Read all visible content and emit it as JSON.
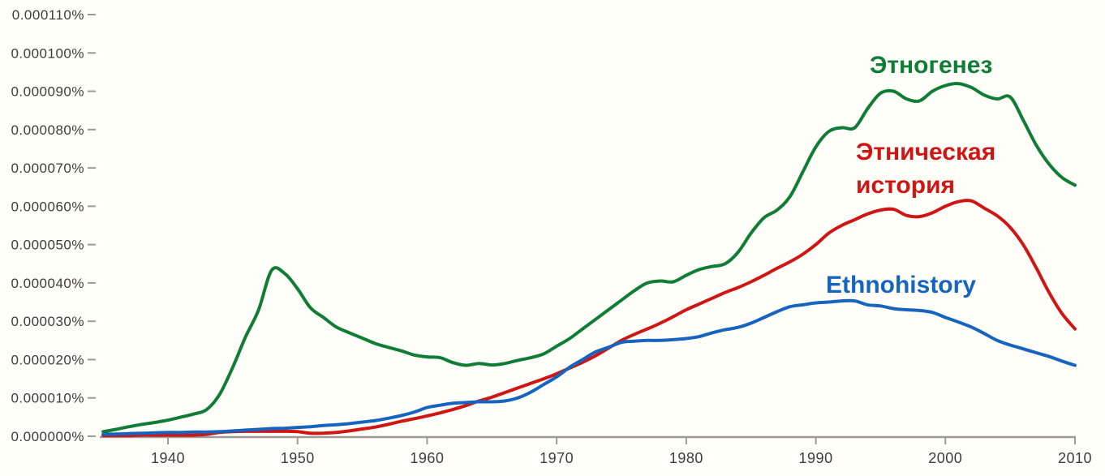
{
  "chart_data": {
    "type": "line",
    "title": "",
    "xlabel": "",
    "ylabel": "",
    "value_unit": "1e-6 percent (10 = 0.000010%)",
    "grid": false,
    "legend_position": "inline-labels-near-lines",
    "background_color": "#fffef8",
    "axis_color": "#9b9b9b",
    "tick_text_color": "#3d3d3d",
    "x": [
      1935,
      1936,
      1937,
      1938,
      1939,
      1940,
      1941,
      1942,
      1943,
      1944,
      1945,
      1946,
      1947,
      1948,
      1949,
      1950,
      1951,
      1952,
      1953,
      1954,
      1955,
      1956,
      1957,
      1958,
      1959,
      1960,
      1961,
      1962,
      1963,
      1964,
      1965,
      1966,
      1967,
      1968,
      1969,
      1970,
      1971,
      1972,
      1973,
      1974,
      1975,
      1976,
      1977,
      1978,
      1979,
      1980,
      1981,
      1982,
      1983,
      1984,
      1985,
      1986,
      1987,
      1988,
      1989,
      1990,
      1991,
      1992,
      1993,
      1994,
      1995,
      1996,
      1997,
      1998,
      1999,
      2000,
      2001,
      2002,
      2003,
      2004,
      2005,
      2006,
      2007,
      2008,
      2009,
      2010
    ],
    "xlim": [
      1935,
      2010
    ],
    "ylim": [
      0,
      110
    ],
    "x_axis": {
      "tick_years": [
        1940,
        1950,
        1960,
        1970,
        1980,
        1990,
        2000,
        2010
      ],
      "tick_labels": [
        "1940",
        "1950",
        "1960",
        "1970",
        "1980",
        "1990",
        "2000",
        "2010"
      ]
    },
    "y_axis": {
      "tick_values": [
        0,
        10,
        20,
        30,
        40,
        50,
        60,
        70,
        80,
        90,
        100,
        110
      ],
      "tick_labels": [
        "0.000000%",
        "0.000010%",
        "0.000020%",
        "0.000030%",
        "0.000040%",
        "0.000050%",
        "0.000060%",
        "0.000070%",
        "0.000080%",
        "0.000090%",
        "0.000100%",
        "0.000110%"
      ]
    },
    "series": [
      {
        "id": "etnogenez",
        "name": "Этногенез",
        "color": "#0f7d35",
        "values": [
          1.2,
          1.8,
          2.5,
          3.1,
          3.6,
          4.2,
          5.0,
          5.8,
          7.0,
          11,
          18,
          26,
          33,
          43.3,
          42.5,
          38.5,
          33.5,
          31,
          28.5,
          27,
          25.6,
          24.2,
          23.2,
          22.3,
          21.2,
          20.7,
          20.5,
          19.2,
          18.5,
          19,
          18.6,
          19,
          19.8,
          20.5,
          21.5,
          23.5,
          25.5,
          28,
          30.5,
          33,
          35.5,
          38,
          40,
          40.5,
          40.3,
          42,
          43.5,
          44.3,
          45,
          48,
          53,
          57,
          59,
          62.5,
          69,
          75.5,
          79.5,
          80.5,
          80.5,
          85.5,
          89.5,
          90,
          88,
          87.5,
          90,
          91.5,
          92,
          91,
          89,
          88,
          88.5,
          82.5,
          76,
          71,
          67.5,
          65.5
        ]
      },
      {
        "id": "etnicheskaya-istoriya",
        "name": "Этническая история",
        "color": "#d01515",
        "values": [
          0.2,
          0.2,
          0.2,
          0.3,
          0.3,
          0.3,
          0.3,
          0.3,
          0.5,
          1.0,
          1.2,
          1.3,
          1.3,
          1.3,
          1.3,
          1.2,
          0.8,
          0.8,
          1.0,
          1.4,
          1.9,
          2.4,
          3.1,
          3.9,
          4.6,
          5.3,
          6.1,
          7.0,
          8.0,
          9.2,
          10.2,
          11.4,
          12.6,
          13.8,
          15.0,
          16.3,
          17.8,
          19.3,
          21.0,
          23.0,
          25.0,
          26.6,
          28.0,
          29.5,
          31.2,
          33.0,
          34.5,
          36.0,
          37.5,
          38.8,
          40.3,
          42.0,
          43.8,
          45.5,
          47.5,
          50.0,
          53.0,
          55.0,
          56.5,
          58.0,
          59.0,
          59.2,
          57.6,
          57.3,
          58.3,
          60.0,
          61.2,
          61.4,
          59.5,
          57.5,
          54.5,
          50.0,
          44.0,
          37.5,
          32.0,
          28.0
        ]
      },
      {
        "id": "ethnohistory",
        "name": "Ethnohistory",
        "color": "#1565c0",
        "values": [
          0.5,
          0.6,
          0.7,
          0.8,
          0.9,
          1.0,
          1.0,
          1.1,
          1.1,
          1.2,
          1.4,
          1.6,
          1.8,
          2.0,
          2.1,
          2.3,
          2.5,
          2.8,
          3.0,
          3.3,
          3.7,
          4.1,
          4.7,
          5.4,
          6.3,
          7.5,
          8.1,
          8.6,
          8.8,
          9.0,
          9.0,
          9.2,
          10.0,
          11.5,
          13.5,
          15.5,
          18.0,
          20.0,
          22.0,
          23.2,
          24.5,
          24.8,
          25.0,
          25.0,
          25.2,
          25.5,
          26.0,
          27.0,
          27.8,
          28.4,
          29.5,
          31.0,
          32.5,
          33.8,
          34.3,
          34.8,
          35.0,
          35.3,
          35.3,
          34.3,
          34.0,
          33.3,
          33.0,
          32.8,
          32.3,
          31.0,
          29.8,
          28.5,
          26.8,
          25.0,
          23.8,
          22.8,
          21.8,
          20.8,
          19.6,
          18.5
        ]
      }
    ]
  }
}
